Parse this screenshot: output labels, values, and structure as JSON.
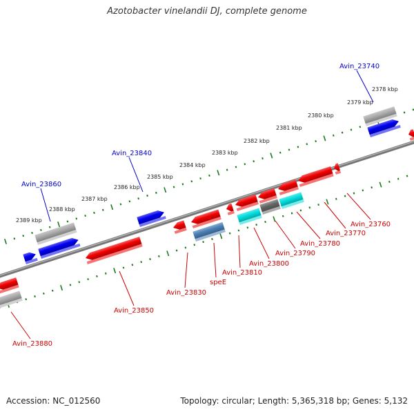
{
  "title": "Azotobacter vinelandii DJ, complete genome",
  "footer": {
    "accession": "Accession: NC_012560",
    "summary": "Topology: circular; Length: 5,365,318 bp; Genes: 5,132"
  },
  "colors": {
    "forward_gene": "#0000ee",
    "reverse_gene": "#ee0000",
    "pseudo_gene": "#aaaaaa",
    "rna_gene": "#00dddd",
    "other_gene": "#4a7fb5",
    "dark_gene": "#666666",
    "backbone": "#777777",
    "tick": "#1a7a1a",
    "label_forward": "#0000cc",
    "label_reverse": "#cc0000"
  },
  "scale_labels": [
    "2378 kbp",
    "2379 kbp",
    "2380 kbp",
    "2381 kbp",
    "2382 kbp",
    "2383 kbp",
    "2384 kbp",
    "2385 kbp",
    "2386 kbp",
    "2387 kbp",
    "2388 kbp",
    "2389 kbp"
  ],
  "gene_labels": [
    {
      "text": "Avin_23740",
      "strand": "forward"
    },
    {
      "text": "Avin_23840",
      "strand": "forward"
    },
    {
      "text": "Avin_23860",
      "strand": "forward"
    },
    {
      "text": "Avin_23760",
      "strand": "reverse"
    },
    {
      "text": "Avin_23770",
      "strand": "reverse"
    },
    {
      "text": "Avin_23780",
      "strand": "reverse"
    },
    {
      "text": "Avin_23790",
      "strand": "reverse"
    },
    {
      "text": "Avin_23800",
      "strand": "reverse"
    },
    {
      "text": "Avin_23810",
      "strand": "reverse"
    },
    {
      "text": "speE",
      "strand": "reverse"
    },
    {
      "text": "Avin_23830",
      "strand": "reverse"
    },
    {
      "text": "Avin_23850",
      "strand": "reverse"
    },
    {
      "text": "Avin_23880",
      "strand": "reverse"
    }
  ]
}
